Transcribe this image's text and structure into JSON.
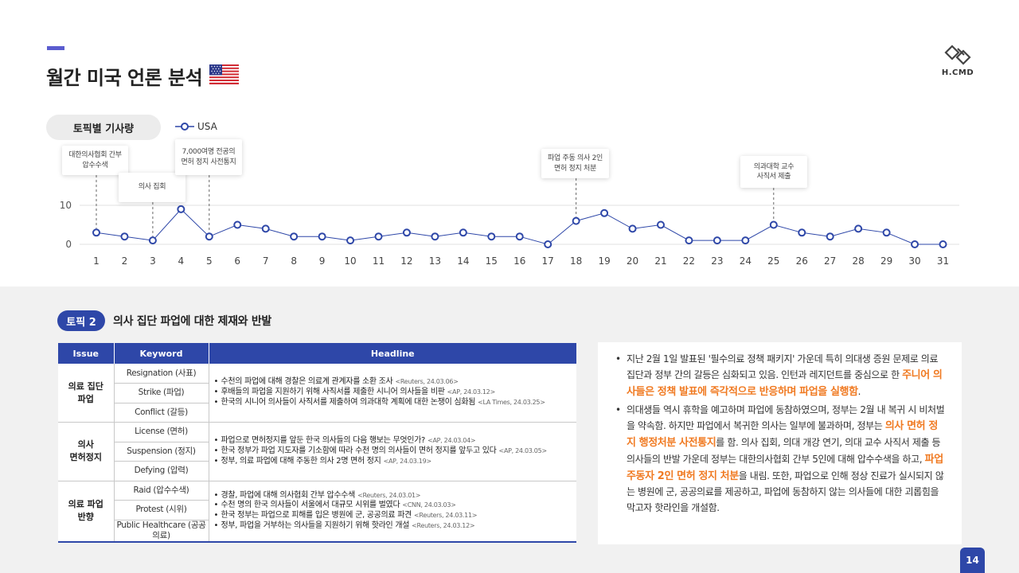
{
  "header": {
    "title": "월간 미국 언론 분석",
    "logo_text": "H.CMD"
  },
  "chart_section": {
    "topic_label": "토픽별 기사량",
    "legend_label": "USA",
    "callouts": [
      {
        "day": 1,
        "text": "대한의사협회 간부\n압수수색"
      },
      {
        "day": 3,
        "text": "의사 집회"
      },
      {
        "day": 5,
        "text": "7,000여명 전공의\n면허 정지 사전통지"
      },
      {
        "day": 18,
        "text": "파업 주동 의사 2인\n면허 정지 처분"
      },
      {
        "day": 25,
        "text": "의과대학 교수\n사직서 제출"
      }
    ]
  },
  "chart_data": {
    "type": "line",
    "x": [
      1,
      2,
      3,
      4,
      5,
      6,
      7,
      8,
      9,
      10,
      11,
      12,
      13,
      14,
      15,
      16,
      17,
      18,
      19,
      20,
      21,
      22,
      23,
      24,
      25,
      26,
      27,
      28,
      29,
      30,
      31
    ],
    "series": [
      {
        "name": "USA",
        "values": [
          3,
          2,
          1,
          9,
          2,
          5,
          4,
          2,
          2,
          1,
          2,
          3,
          2,
          3,
          2,
          2,
          0,
          6,
          8,
          4,
          5,
          1,
          1,
          1,
          5,
          3,
          2,
          4,
          3,
          0,
          0
        ]
      }
    ],
    "yticks": [
      0,
      10
    ],
    "ylim": [
      0,
      10
    ],
    "grid": true,
    "legend_position": "top-left",
    "colors": {
      "line": "#2e47a8",
      "grid": "#e0e0e0"
    }
  },
  "topic": {
    "badge": "토픽 2",
    "heading": "의사 집단 파업에 대한 제재와 반발"
  },
  "table": {
    "headers": [
      "Issue",
      "Keyword",
      "Headline"
    ],
    "groups": [
      {
        "issue_line1": "의료 집단",
        "issue_line2": "파업",
        "keywords": [
          "Resignation (사표)",
          "Strike (파업)",
          "Conflict (갈등)"
        ],
        "headlines": [
          {
            "text": "수천의 파업에 대해 경찰은 의료계 관계자를 소환 조사",
            "source": "<Reuters, 24.03.06>"
          },
          {
            "text": "후배들의 파업을 지원하기 위해 사직서를 제출한 시니어 의사들을 비판",
            "source": "<AP, 24.03.12>"
          },
          {
            "text": "한국의 시니어 의사들이 사직서를 제출하여 의과대학 계획에 대한 논쟁이 심화됨",
            "source": "<LA Times, 24.03.25>"
          }
        ]
      },
      {
        "issue_line1": "의사",
        "issue_line2": "면허정지",
        "keywords": [
          "License (면허)",
          "Suspension (정지)",
          "Defying (압력)"
        ],
        "headlines": [
          {
            "text": "파업으로 면허정지를 앞둔 한국 의사들의 다음 행보는 무엇인가?",
            "source": "<AP, 24.03.04>"
          },
          {
            "text": "한국 정부가 파업 지도자를 기소함에 따라 수천 명의 의사들이 면허 정지를 앞두고 있다",
            "source": "<AP, 24.03.05>"
          },
          {
            "text": "정부, 의료 파업에 대해 주동한 의사 2명 면허 정지",
            "source": "<AP, 24.03.19>"
          }
        ]
      },
      {
        "issue_line1": "의료 파업",
        "issue_line2": "반향",
        "keywords": [
          "Raid (압수수색)",
          "Protest (시위)",
          "Public Healthcare (공공의료)"
        ],
        "headlines": [
          {
            "text": "경찰, 파업에 대해 의사협회 간부 압수수색",
            "source": "<Reuters, 24.03.01>"
          },
          {
            "text": "수천 명의 한국 의사들이 서울에서 대규모 시위를 벌였다",
            "source": "<CNN, 24.03.03>"
          },
          {
            "text": "한국 정부는 파업으로 피해를 입은 병원에 군, 공공의료 파견",
            "source": "<Reuters, 24.03.11>"
          },
          {
            "text": "정부, 파업을 거부하는 의사들을 지원하기 위해 핫라인 개설",
            "source": "<Reuters, 24.03.12>"
          }
        ]
      }
    ]
  },
  "summary": {
    "p1_a": "지난 2월 1일 발표된 '필수의료 정책 패키지' 가운데 특히 의대생 증원 문제로 의료 집단과 정부 간의 갈등은 심화되고 있음. 인턴과 레지던트를 중심으로 한 ",
    "p1_hi": "주니어 의사들은 정책 발표에 즉각적으로 반응하며 파업을 실행함",
    "p1_b": ".",
    "p2_a": "의대생들 역시 휴학을 예고하며 파업에 동참하였으며, 정부는 2월 내 복귀 시 비처벌을 약속함. 하지만 파업에서 복귀한 의사는 일부에 불과하며, 정부는 ",
    "p2_hi1": "의사 면허 정지 행정처분 사전통지",
    "p2_b": "를 함. 의사 집회, 의대 개강 연기, 의대 교수 사직서 제출 등 의사들의 반발 가운데 정부는 대한의사협회 간부 5인에 대해 압수수색을 하고, ",
    "p2_hi2": "파업 주동자 2인 면허 정지 처분",
    "p2_c": "을 내림. 또한, 파업으로 인해 정상 진료가 실시되지 않는 병원에 군, 공공의료를 제공하고, 파업에 동참하지 않는 의사들에 대한 괴롭힘을 막고자 핫라인을 개설함."
  },
  "page_number": "14"
}
